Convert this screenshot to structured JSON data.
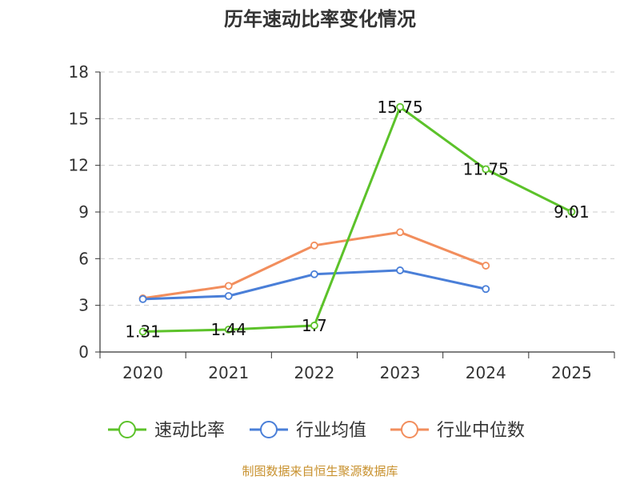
{
  "chart_data": {
    "type": "line",
    "title": "历年速动比率变化情况",
    "categories": [
      "2020",
      "2021",
      "2022",
      "2023",
      "2024",
      "2025"
    ],
    "ylim": [
      0,
      18
    ],
    "yticks": [
      0,
      3,
      6,
      9,
      12,
      15,
      18
    ],
    "grid": true,
    "legend_position": "bottom",
    "series": [
      {
        "name": "速动比率",
        "color": "#5cc22a",
        "values": [
          1.31,
          1.44,
          1.7,
          15.75,
          11.75,
          9.01
        ],
        "labels": [
          "1.31",
          "1.44",
          "1.7",
          "15.75",
          "11.75",
          "9.01"
        ]
      },
      {
        "name": "行业均值",
        "color": "#4a7fd8",
        "values": [
          3.4,
          3.6,
          5.0,
          5.25,
          4.05,
          null
        ]
      },
      {
        "name": "行业中位数",
        "color": "#f28e5d",
        "values": [
          3.45,
          4.25,
          6.85,
          7.7,
          5.55,
          null
        ]
      }
    ]
  },
  "source": "制图数据来自恒生聚源数据库"
}
